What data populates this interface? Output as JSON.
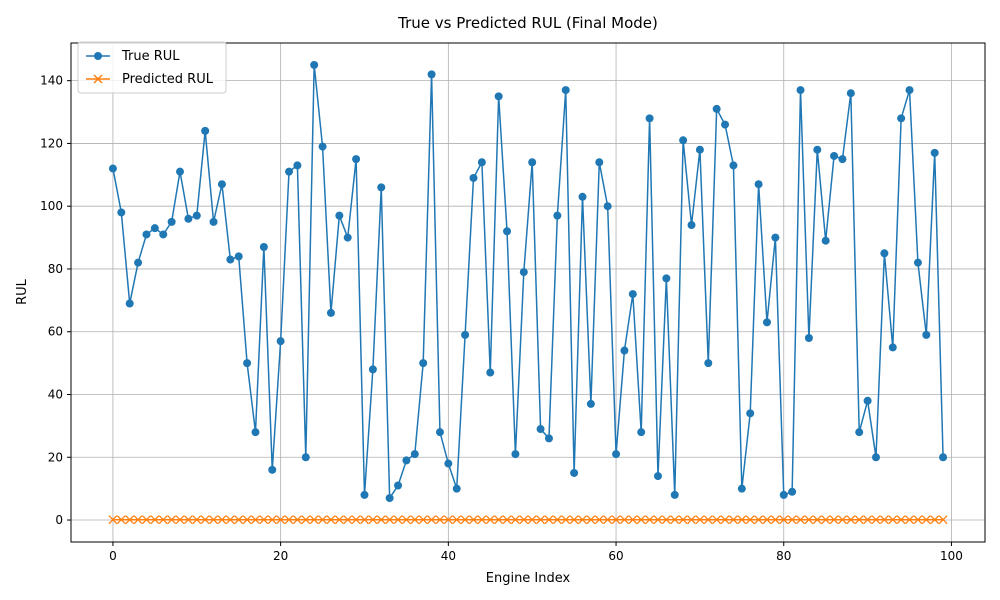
{
  "chart_data": {
    "type": "line",
    "title": "True vs Predicted RUL (Final Mode)",
    "xlabel": "Engine Index",
    "ylabel": "RUL",
    "xlim": [
      -5,
      104
    ],
    "ylim": [
      -7,
      152
    ],
    "xticks": [
      0,
      20,
      40,
      60,
      80,
      100
    ],
    "yticks": [
      0,
      20,
      40,
      60,
      80,
      100,
      120,
      140
    ],
    "grid": true,
    "legend_position": "upper-left",
    "x": [
      0,
      1,
      2,
      3,
      4,
      5,
      6,
      7,
      8,
      9,
      10,
      11,
      12,
      13,
      14,
      15,
      16,
      17,
      18,
      19,
      20,
      21,
      22,
      23,
      24,
      25,
      26,
      27,
      28,
      29,
      30,
      31,
      32,
      33,
      34,
      35,
      36,
      37,
      38,
      39,
      40,
      41,
      42,
      43,
      44,
      45,
      46,
      47,
      48,
      49,
      50,
      51,
      52,
      53,
      54,
      55,
      56,
      57,
      58,
      59,
      60,
      61,
      62,
      63,
      64,
      65,
      66,
      67,
      68,
      69,
      70,
      71,
      72,
      73,
      74,
      75,
      76,
      77,
      78,
      79,
      80,
      81,
      82,
      83,
      84,
      85,
      86,
      87,
      88,
      89,
      90,
      91,
      92,
      93,
      94,
      95,
      96,
      97,
      98,
      99
    ],
    "series": [
      {
        "name": "True RUL",
        "color": "#1f77b4",
        "marker": "circle",
        "values": [
          112,
          98,
          69,
          82,
          91,
          93,
          91,
          95,
          111,
          96,
          97,
          124,
          95,
          107,
          83,
          84,
          50,
          28,
          87,
          16,
          57,
          111,
          113,
          20,
          145,
          119,
          66,
          97,
          90,
          115,
          8,
          48,
          106,
          7,
          11,
          19,
          21,
          50,
          142,
          28,
          18,
          10,
          59,
          109,
          114,
          47,
          135,
          92,
          21,
          79,
          114,
          29,
          26,
          97,
          137,
          15,
          103,
          37,
          114,
          100,
          21,
          54,
          72,
          28,
          128,
          14,
          77,
          8,
          121,
          94,
          118,
          50,
          131,
          126,
          113,
          10,
          34,
          107,
          63,
          90,
          8,
          9,
          137,
          58,
          118,
          89,
          116,
          115,
          136,
          28,
          38,
          20,
          85,
          55,
          128,
          137,
          82,
          59,
          117,
          20
        ]
      },
      {
        "name": "Predicted RUL",
        "color": "#ff7f0e",
        "marker": "x",
        "values": [
          0.1,
          0.1,
          0.1,
          0.1,
          0.1,
          0.1,
          0.1,
          0.1,
          0.1,
          0.1,
          0.1,
          0.1,
          0.1,
          0.1,
          0.1,
          0.1,
          0.1,
          0.1,
          0.1,
          0.1,
          0.1,
          0.1,
          0.1,
          0.1,
          0.1,
          0.1,
          0.1,
          0.1,
          0.1,
          0.1,
          0.1,
          0.1,
          0.1,
          0.1,
          0.1,
          0.1,
          0.1,
          0.1,
          0.1,
          0.1,
          0.1,
          0.1,
          0.1,
          0.1,
          0.1,
          0.1,
          0.1,
          0.1,
          0.1,
          0.1,
          0.1,
          0.1,
          0.1,
          0.1,
          0.1,
          0.1,
          0.1,
          0.1,
          0.1,
          0.1,
          0.1,
          0.1,
          0.1,
          0.1,
          0.1,
          0.1,
          0.1,
          0.1,
          0.1,
          0.1,
          0.1,
          0.1,
          0.1,
          0.1,
          0.1,
          0.1,
          0.1,
          0.1,
          0.1,
          0.1,
          0.1,
          0.1,
          0.1,
          0.1,
          0.1,
          0.1,
          0.1,
          0.1,
          0.1,
          0.1,
          0.1,
          0.1,
          0.1,
          0.1,
          0.1,
          0.1,
          0.1,
          0.1,
          0.1,
          0.1
        ]
      }
    ]
  }
}
